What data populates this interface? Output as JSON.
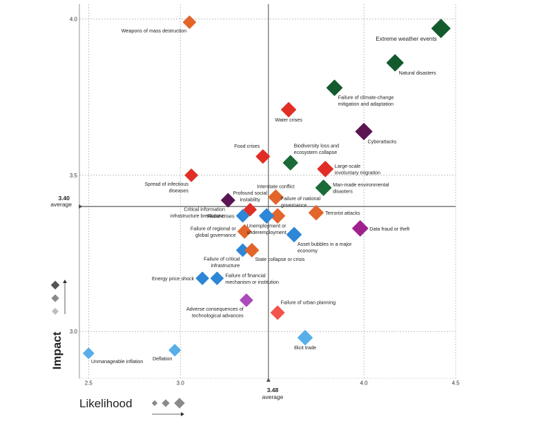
{
  "chart_data": {
    "type": "scatter",
    "xlabel": "Likelihood",
    "ylabel": "Impact",
    "xlim": [
      2.45,
      4.5
    ],
    "ylim": [
      2.85,
      4.05
    ],
    "x_ticks": [
      "2.5",
      "3.0",
      "4.0",
      "4.5"
    ],
    "y_ticks": [
      "3.0",
      "3.5",
      "4.0"
    ],
    "average": {
      "likelihood": 3.48,
      "likelihood_label": "3.48",
      "impact": 3.4,
      "impact_label": "3.40",
      "label": "average"
    },
    "colors": {
      "environmental": "#1a6b38",
      "environmental_dark": "#135a2d",
      "societal": "#e02e26",
      "geopolitical": "#e3652a",
      "economic": "#2d86d6",
      "technological": "#8a1f8f",
      "technological_dark": "#5a1552",
      "light_blue": "#57aee8"
    },
    "points": [
      {
        "label": "Extreme weather events",
        "x": 4.42,
        "y": 3.97,
        "color": "#135a2d",
        "size": 10,
        "lines": [
          "Extreme weather events"
        ],
        "pos": "bl"
      },
      {
        "label": "Natural disasters",
        "x": 4.17,
        "y": 3.86,
        "color": "#135a2d",
        "size": 9,
        "lines": [
          "Natural disasters"
        ],
        "pos": "br"
      },
      {
        "label": "Failure of climate-change mitigation and adaptation",
        "x": 3.84,
        "y": 3.78,
        "color": "#135a2d",
        "size": 8.5,
        "lines": [
          "Failure of climate-change",
          "mitigation and adaptation"
        ],
        "pos": "br"
      },
      {
        "label": "Cyberattacks",
        "x": 4.0,
        "y": 3.64,
        "color": "#5a1552",
        "size": 9,
        "lines": [
          "Cyberattacks"
        ],
        "pos": "br"
      },
      {
        "label": "Water crises",
        "x": 3.59,
        "y": 3.71,
        "color": "#e02e26",
        "size": 8,
        "lines": [
          "Water crises"
        ],
        "pos": "b"
      },
      {
        "label": "Weapons of mass destruction",
        "x": 3.05,
        "y": 3.99,
        "color": "#e3652a",
        "size": 7,
        "lines": [
          "Weapons of mass destruction"
        ],
        "pos": "bl"
      },
      {
        "label": "Food crises",
        "x": 3.45,
        "y": 3.56,
        "color": "#e02e26",
        "size": 7.5,
        "lines": [
          "Food crises"
        ],
        "pos": "tl"
      },
      {
        "label": "Biodiversity loss and ecosystem collapse",
        "x": 3.6,
        "y": 3.54,
        "color": "#1a6b38",
        "size": 8,
        "lines": [
          "Biodiversity loss and",
          "ecosystem collapse"
        ],
        "pos": "tr"
      },
      {
        "label": "Large-scale involuntary migration",
        "x": 3.79,
        "y": 3.52,
        "color": "#e02e26",
        "size": 8.5,
        "lines": [
          "Large-scale",
          "involuntary migration"
        ],
        "pos": "r"
      },
      {
        "label": "Spread of infectious diseases",
        "x": 3.06,
        "y": 3.5,
        "color": "#e02e26",
        "size": 7,
        "lines": [
          "Spread of infectious",
          "diseases"
        ],
        "pos": "bl"
      },
      {
        "label": "Interstate conflict",
        "x": 3.52,
        "y": 3.43,
        "color": "#e3652a",
        "size": 8,
        "lines": [
          "Interstate conflict"
        ],
        "pos": "t"
      },
      {
        "label": "Man-made environmental disasters",
        "x": 3.78,
        "y": 3.46,
        "color": "#1a6b38",
        "size": 8.5,
        "lines": [
          "Man-made environmental",
          "disasters"
        ],
        "pos": "r"
      },
      {
        "label": "Critical information infrastructure breakdown",
        "x": 3.26,
        "y": 3.42,
        "color": "#5a1552",
        "size": 7.5,
        "lines": [
          "Critical information",
          "infrastructure breakdown"
        ],
        "pos": "bl"
      },
      {
        "label": "Profound social instability",
        "x": 3.38,
        "y": 3.39,
        "color": "#e02e26",
        "size": 7,
        "lines": [
          "Profound social",
          "instability"
        ],
        "pos": "t"
      },
      {
        "label": "Failure of national governance",
        "x": 3.53,
        "y": 3.37,
        "color": "#e3652a",
        "size": 8,
        "lines": [
          "Failure of national",
          "governance"
        ],
        "pos": "tr"
      },
      {
        "label": "Terrorist attacks",
        "x": 3.74,
        "y": 3.38,
        "color": "#e3652a",
        "size": 8,
        "lines": [
          "Terrorist attacks"
        ],
        "pos": "r"
      },
      {
        "label": "Fiscal crises",
        "x": 3.34,
        "y": 3.37,
        "color": "#2d86d6",
        "size": 7,
        "lines": [
          "Fiscal crises"
        ],
        "pos": "l"
      },
      {
        "label": "Unemployment or underemployment",
        "x": 3.47,
        "y": 3.37,
        "color": "#2d86d6",
        "size": 8,
        "lines": [
          "Unemployment or",
          "underemployment"
        ],
        "pos": "b"
      },
      {
        "label": "Failure of regional or global governance",
        "x": 3.35,
        "y": 3.32,
        "color": "#e3652a",
        "size": 7.5,
        "lines": [
          "Failure of regional or",
          "global governance"
        ],
        "pos": "l"
      },
      {
        "label": "Data fraud or theft",
        "x": 3.98,
        "y": 3.33,
        "color": "#a0218d",
        "size": 8.5,
        "lines": [
          "Data fraud or theft"
        ],
        "pos": "r"
      },
      {
        "label": "Asset bubbles in a major economy",
        "x": 3.62,
        "y": 3.31,
        "color": "#2d86d6",
        "size": 8,
        "lines": [
          "Asset bubbles in a major",
          "economy"
        ],
        "pos": "br"
      },
      {
        "label": "Failure of critical infrastructure",
        "x": 3.34,
        "y": 3.26,
        "color": "#2d86d6",
        "size": 7,
        "lines": [
          "Failure of critical",
          "infrastructure"
        ],
        "pos": "bl"
      },
      {
        "label": "State collapse or crisis",
        "x": 3.39,
        "y": 3.26,
        "color": "#e3652a",
        "size": 7.5,
        "lines": [
          "State collapse or crisis"
        ],
        "pos": "br"
      },
      {
        "label": "Energy price shock",
        "x": 3.12,
        "y": 3.17,
        "color": "#2d86d6",
        "size": 7,
        "lines": [
          "Energy price shock"
        ],
        "pos": "l"
      },
      {
        "label": "Failure of financial mechanism or institution",
        "x": 3.2,
        "y": 3.17,
        "color": "#2d86d6",
        "size": 7,
        "lines": [
          "Failure of financial",
          "mechanism or institution"
        ],
        "pos": "r"
      },
      {
        "label": "Adverse consequences of technological advances",
        "x": 3.36,
        "y": 3.1,
        "color": "#a94bb8",
        "size": 7,
        "lines": [
          "Adverse consequences of",
          "technological advances"
        ],
        "pos": "bl"
      },
      {
        "label": "Failure of urban planning",
        "x": 3.53,
        "y": 3.06,
        "color": "#f2544c",
        "size": 7.5,
        "lines": [
          "Failure of urban planning"
        ],
        "pos": "tr"
      },
      {
        "label": "Illicit trade",
        "x": 3.68,
        "y": 2.98,
        "color": "#57aee8",
        "size": 8,
        "lines": [
          "Illicit trade"
        ],
        "pos": "b"
      },
      {
        "label": "Deflation",
        "x": 2.97,
        "y": 2.94,
        "color": "#57aee8",
        "size": 6.5,
        "lines": [
          "Deflation"
        ],
        "pos": "bl"
      },
      {
        "label": "Unmanageable inflation",
        "x": 2.5,
        "y": 2.93,
        "color": "#57aee8",
        "size": 6,
        "lines": [
          "Unmanageable inflation"
        ],
        "pos": "br"
      }
    ],
    "legend": {
      "impact_shades": [
        "#555555",
        "#8a8a8a",
        "#bdbdbd"
      ],
      "likelihood_shades": [
        "#8a8a8a",
        "#8a8a8a",
        "#8a8a8a"
      ]
    }
  }
}
